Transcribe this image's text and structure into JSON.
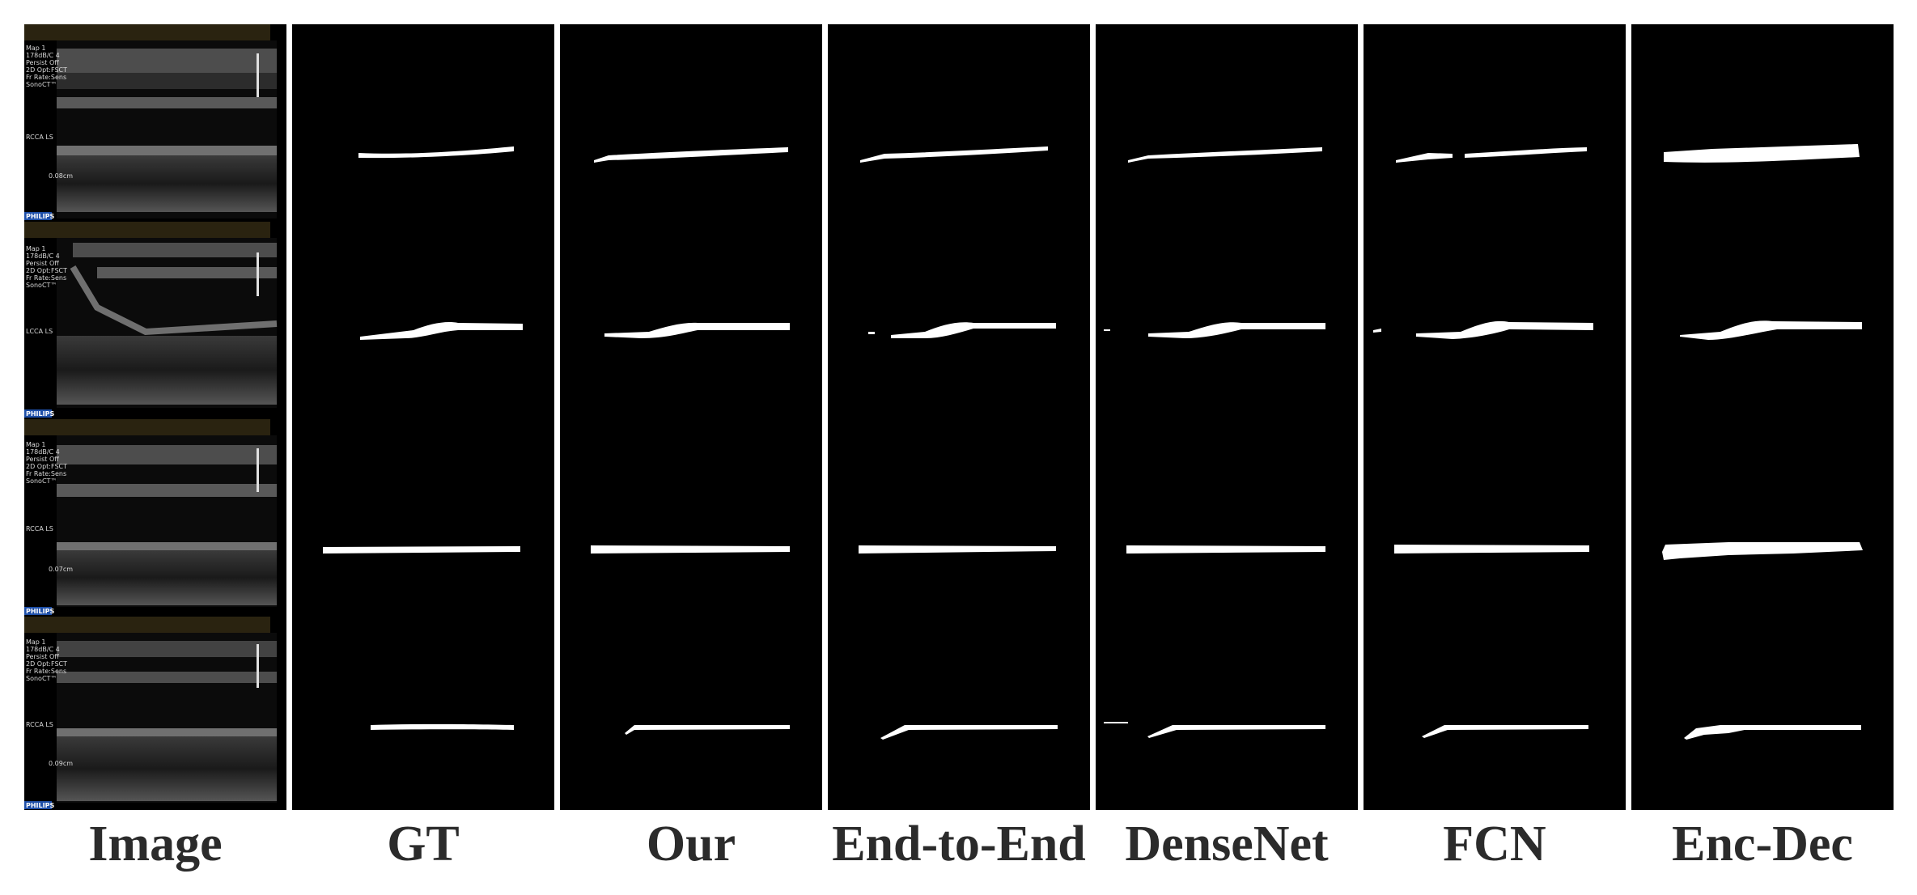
{
  "columns": [
    {
      "id": "image",
      "label": "Image"
    },
    {
      "id": "gt",
      "label": "GT"
    },
    {
      "id": "our",
      "label": "Our"
    },
    {
      "id": "end-to-end",
      "label": "End-to-End"
    },
    {
      "id": "densenet",
      "label": "DenseNet"
    },
    {
      "id": "fcn",
      "label": "FCN"
    },
    {
      "id": "enc-dec",
      "label": "Enc-Dec"
    }
  ],
  "ultrasound": {
    "brand": "PHILIPS",
    "panels": [
      {
        "settings": [
          "Map 1",
          "178dB/C 4",
          "Persist Off",
          "2D Opt:FSCT",
          "Fr Rate:Sens",
          "SonoCT™"
        ],
        "vessel": "RCCA  LS",
        "measurement": "0.08cm"
      },
      {
        "settings": [
          "Map 1",
          "178dB/C 4",
          "Persist Off",
          "2D Opt:FSCT",
          "Fr Rate:Sens",
          "SonoCT™"
        ],
        "vessel": "LCCA  LS",
        "measurement": ""
      },
      {
        "settings": [
          "Map 1",
          "178dB/C 4",
          "Persist Off",
          "2D Opt:FSCT",
          "Fr Rate:Sens",
          "SonoCT™"
        ],
        "vessel": "RCCA  LS",
        "measurement": "0.07cm"
      },
      {
        "settings": [
          "Map 1",
          "178dB/C 4",
          "Persist Off",
          "2D Opt:FSCT",
          "Fr Rate:Sens",
          "SonoCT™"
        ],
        "vessel": "RCCA  LS",
        "measurement": "0.09cm"
      }
    ]
  },
  "colors": {
    "background": "#000000",
    "mask": "#ffffff",
    "label": "#2b2b2b",
    "philips_badge": "#1e4fa8"
  }
}
